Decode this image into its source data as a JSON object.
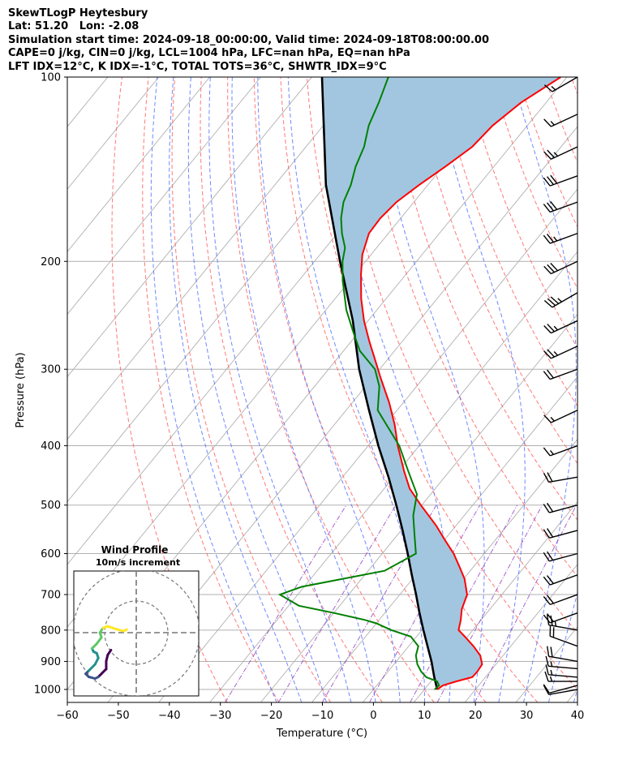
{
  "header": {
    "line1": "SkewTLogP Heytesbury",
    "line2": "Lat: 51.20   Lon: -2.08",
    "line3": "Simulation start time: 2024-09-18_00:00:00, Valid time: 2024-09-18T08:00:00.00",
    "line4": "CAPE=0 j/kg, CIN=0 j/kg, LCL=1004 hPa, LFC=nan hPa, EQ=nan hPa",
    "line5": "LFT IDX=12°C, K IDX=-1°C, TOTAL TOTS=36°C, SHWTR_IDX=9°C"
  },
  "inset": {
    "title": "Wind Profile",
    "subtitle": "10m/s increment"
  },
  "chart_data": {
    "type": "line",
    "subtype": "skew-T log-P diagram",
    "xlabel": "Temperature (°C)",
    "ylabel": "Pressure (hPa)",
    "xlim": [
      -60,
      40
    ],
    "ylim": [
      1050,
      100
    ],
    "y_scale": "log",
    "x_ticks": [
      "−60",
      "−50",
      "−40",
      "−30",
      "−20",
      "−10",
      "0",
      "10",
      "20",
      "30",
      "40"
    ],
    "y_ticks": [
      "100",
      "200",
      "300",
      "400",
      "500",
      "600",
      "700",
      "800",
      "900",
      "1000"
    ],
    "grid": true,
    "shading": "area between temperature and parcel profile",
    "colors": {
      "temperature": "#ff0000",
      "dewpoint": "#008000",
      "parcel": "#000000",
      "shade": "#a2c6e0",
      "dry_adiabat": "#ff6060",
      "moist_adiabat": "#4060ff",
      "mixing_ratio": "#9040c0",
      "isotherm": "#b0b0b0"
    },
    "series": [
      {
        "key": "temperature",
        "pressure": [
          1000,
          985,
          970,
          955,
          935,
          910,
          880,
          850,
          820,
          800,
          770,
          740,
          700,
          660,
          630,
          600,
          570,
          540,
          500,
          470,
          440,
          400,
          370,
          340,
          310,
          290,
          270,
          250,
          230,
          210,
          195,
          180,
          170,
          160,
          150,
          140,
          130,
          120,
          110,
          100
        ],
        "values": [
          12.5,
          13.0,
          15.0,
          17.4,
          17.5,
          17.3,
          15.5,
          12.7,
          9.5,
          7.2,
          6.0,
          4.5,
          3.2,
          0.2,
          -2.8,
          -6.0,
          -9.9,
          -13.9,
          -20.2,
          -25.0,
          -28.9,
          -34.2,
          -38.1,
          -42.8,
          -48.4,
          -52.3,
          -56.5,
          -60.8,
          -64.9,
          -68.8,
          -71.7,
          -73.8,
          -74.0,
          -73.4,
          -71.7,
          -69.5,
          -67.4,
          -66.8,
          -64.9,
          -61.2
        ]
      },
      {
        "key": "dewpoint",
        "pressure": [
          1000,
          985,
          970,
          955,
          935,
          910,
          880,
          850,
          820,
          800,
          780,
          770,
          750,
          730,
          700,
          680,
          640,
          600,
          560,
          520,
          480,
          440,
          400,
          370,
          350,
          320,
          300,
          280,
          260,
          240,
          215,
          200,
          190,
          180,
          170,
          160,
          150,
          140,
          130,
          120,
          110,
          100
        ],
        "values": [
          12.0,
          12.2,
          11.2,
          8.4,
          6.5,
          4.6,
          2.9,
          1.9,
          -1.1,
          -6.0,
          -10.0,
          -12.8,
          -20.0,
          -28.0,
          -33.5,
          -30.5,
          -16.8,
          -13.4,
          -16.6,
          -20.0,
          -22.7,
          -28.1,
          -33.9,
          -39.7,
          -43.8,
          -47.3,
          -50.9,
          -56.8,
          -61.3,
          -66.0,
          -71.4,
          -74.5,
          -76.2,
          -79.1,
          -81.7,
          -83.8,
          -85.1,
          -87.1,
          -88.6,
          -91.1,
          -92.8,
          -95.0
        ]
      },
      {
        "key": "parcel",
        "pressure": [
          1000,
          950,
          900,
          850,
          800,
          750,
          700,
          650,
          600,
          550,
          500,
          450,
          400,
          350,
          300,
          250,
          200,
          150,
          100
        ],
        "values": [
          12.5,
          9.7,
          6.9,
          3.7,
          0.3,
          -3.2,
          -6.8,
          -10.8,
          -15.0,
          -19.7,
          -25.0,
          -31.0,
          -38.0,
          -45.5,
          -54.0,
          -63.0,
          -75.0,
          -90.0,
          -108.0
        ]
      }
    ],
    "wind_barbs": {
      "pressure": [
        1000,
        985,
        970,
        955,
        925,
        900,
        850,
        800,
        750,
        700,
        650,
        600,
        550,
        500,
        450,
        400,
        350,
        300,
        275,
        250,
        225,
        200,
        180,
        160,
        145,
        130,
        115,
        100
      ],
      "speed_kt": [
        10,
        10,
        15,
        15,
        15,
        20,
        20,
        25,
        20,
        20,
        20,
        20,
        20,
        20,
        20,
        15,
        15,
        20,
        25,
        25,
        35,
        30,
        25,
        30,
        30,
        25,
        15,
        15
      ],
      "direction_deg": [
        260,
        255,
        270,
        275,
        275,
        280,
        290,
        280,
        250,
        250,
        250,
        255,
        255,
        255,
        260,
        250,
        245,
        250,
        245,
        245,
        240,
        245,
        250,
        250,
        250,
        245,
        245,
        240
      ]
    },
    "hodograph": {
      "u": [
        -8,
        -9,
        -9.5,
        -9.5,
        -11,
        -12,
        -13,
        -15,
        -16,
        -15,
        -13,
        -12,
        -12.5,
        -13.5,
        -14,
        -12.5,
        -11,
        -11.5,
        -10.5,
        -9,
        -7.5,
        -6,
        -4,
        -3
      ],
      "v": [
        -5.5,
        -7,
        -9,
        -11.5,
        -13,
        -14,
        -14.5,
        -14,
        -13,
        -12,
        -10,
        -8,
        -6.5,
        -6,
        -5,
        -3.5,
        -1.5,
        0,
        1.5,
        2,
        1.5,
        1,
        0.5,
        1
      ]
    }
  }
}
